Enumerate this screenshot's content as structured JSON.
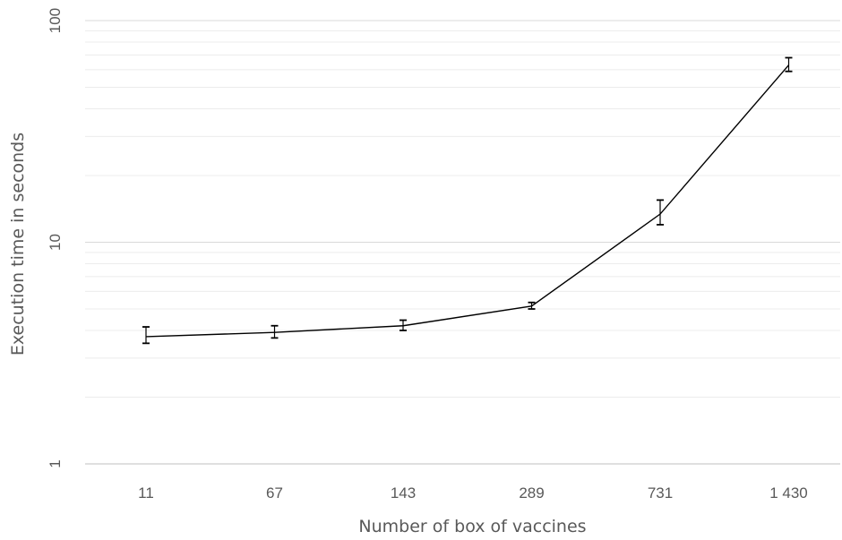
{
  "chart_data": {
    "type": "line",
    "title": "",
    "xlabel": "Number of box of vaccines",
    "ylabel": "Execution time in seconds",
    "y_scale": "log",
    "ylim": [
      1,
      100
    ],
    "y_ticks": [
      {
        "value": 1,
        "label": "1"
      },
      {
        "value": 10,
        "label": "10"
      },
      {
        "value": 100,
        "label": "100"
      }
    ],
    "categories": [
      "11",
      "67",
      "143",
      "289",
      "731",
      "1 430"
    ],
    "series": [
      {
        "values": [
          3.75,
          3.92,
          4.2,
          5.15,
          13.4,
          63
        ],
        "err_low": [
          3.5,
          3.7,
          4.0,
          5.0,
          12.0,
          59
        ],
        "err_high": [
          4.15,
          4.2,
          4.45,
          5.35,
          15.5,
          68
        ]
      }
    ],
    "grid": {
      "major": true,
      "minor": true
    },
    "colors": {
      "line": "#000000",
      "major_grid": "#d9d9d9",
      "minor_grid": "#ececec",
      "text": "#595959"
    }
  }
}
